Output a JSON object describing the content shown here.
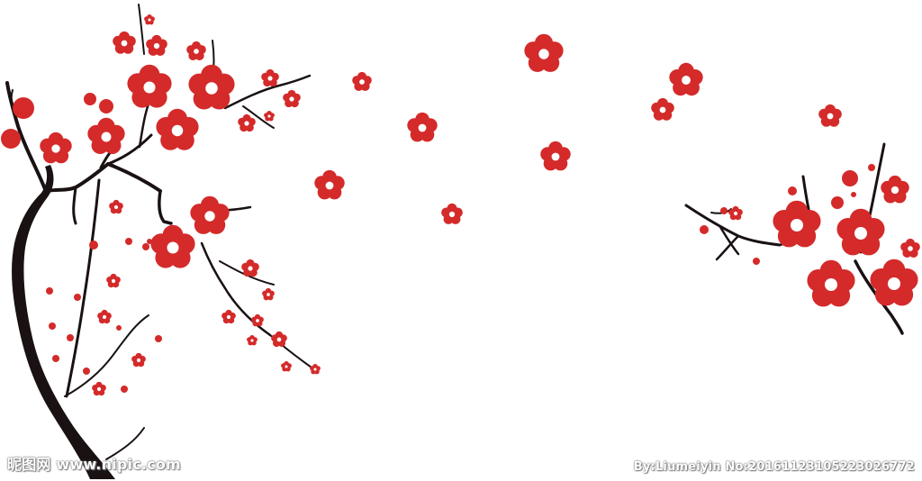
{
  "watermark": {
    "left": "昵图网 www.nipic.com",
    "right": "By:Liumeiyin No:20161123105223026772"
  },
  "colors": {
    "blossom": "#d42a2a",
    "branch": "#1a1212",
    "center": "#ffffff",
    "background": "#ffffff"
  }
}
